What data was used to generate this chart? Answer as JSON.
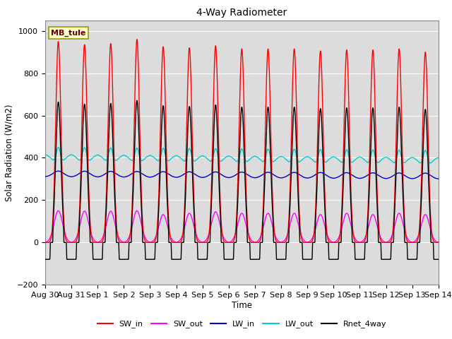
{
  "title": "4-Way Radiometer",
  "xlabel": "Time",
  "ylabel": "Solar Radiation (W/m2)",
  "ylim": [
    -200,
    1050
  ],
  "annotation": "MB_tule",
  "tick_labels": [
    "Aug 30",
    "Aug 31",
    "Sep 1",
    "Sep 2",
    "Sep 3",
    "Sep 4",
    "Sep 5",
    "Sep 6",
    "Sep 7",
    "Sep 8",
    "Sep 9",
    "Sep 10",
    "Sep 11",
    "Sep 12",
    "Sep 13",
    "Sep 14"
  ],
  "n_days": 15,
  "sw_in_peaks": [
    950,
    935,
    940,
    960,
    925,
    920,
    930,
    915,
    915,
    915,
    905,
    910,
    910,
    915,
    900
  ],
  "sw_out_peaks": [
    150,
    148,
    148,
    150,
    132,
    138,
    145,
    138,
    138,
    138,
    132,
    138,
    132,
    138,
    132
  ],
  "lw_in_base": 310,
  "lw_out_base": 410,
  "rnet_night": -80,
  "colors": {
    "SW_in": "#ff0000",
    "SW_out": "#ff00ff",
    "LW_in": "#0000cc",
    "LW_out": "#00cccc",
    "Rnet_4way": "#000000"
  },
  "background_color": "#dcdcdc",
  "figure_background": "#ffffff",
  "grid_color": "#ffffff",
  "annotation_bg": "#ffffcc",
  "annotation_fg": "#660000",
  "annotation_edge": "#999900"
}
